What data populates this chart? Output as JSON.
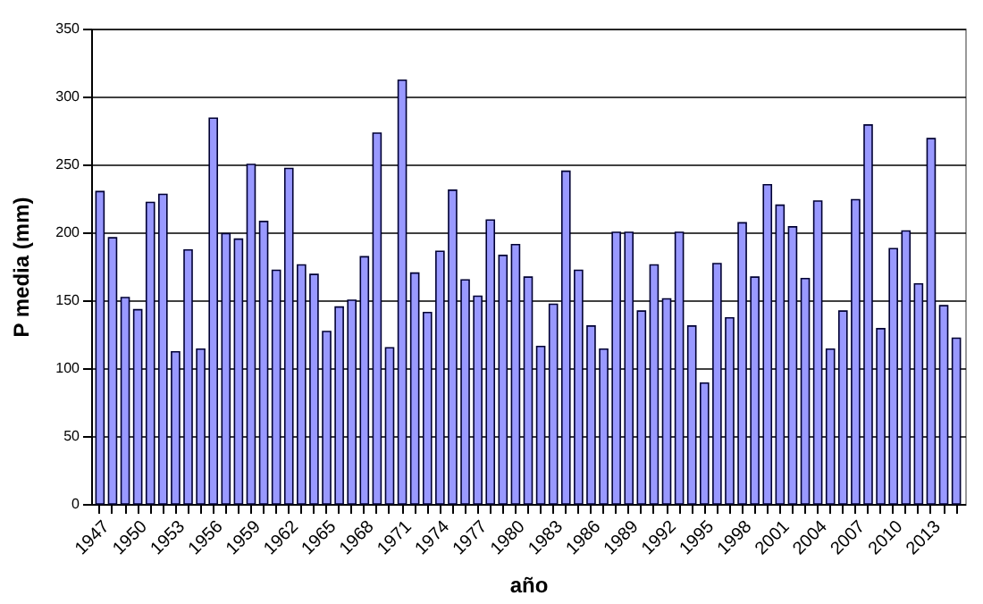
{
  "chart_data": {
    "type": "bar",
    "xlabel": "año",
    "ylabel": "P media (mm)",
    "categories": [
      "1947",
      null,
      null,
      "1950",
      null,
      null,
      "1953",
      null,
      null,
      "1956",
      null,
      null,
      "1959",
      null,
      null,
      "1962",
      null,
      null,
      "1965",
      null,
      null,
      "1968",
      null,
      null,
      "1971",
      null,
      null,
      "1974",
      null,
      null,
      "1977",
      null,
      null,
      "1980",
      null,
      null,
      "1983",
      null,
      null,
      "1986",
      null,
      null,
      "1989",
      null,
      null,
      "1992",
      null,
      null,
      "1995",
      null,
      null,
      "1998",
      null,
      null,
      "2001",
      null,
      null,
      "2004",
      null,
      null,
      "2007",
      null,
      null,
      "2010",
      null,
      null,
      "2013",
      null,
      null
    ],
    "values": [
      230,
      196,
      152,
      143,
      222,
      228,
      112,
      187,
      114,
      284,
      199,
      195,
      250,
      208,
      172,
      247,
      176,
      169,
      127,
      145,
      150,
      182,
      273,
      115,
      312,
      170,
      141,
      186,
      231,
      165,
      153,
      209,
      183,
      191,
      167,
      116,
      147,
      245,
      172,
      131,
      114,
      200,
      200,
      142,
      176,
      151,
      200,
      131,
      89,
      177,
      137,
      207,
      167,
      235,
      220,
      204,
      166,
      223,
      114,
      142,
      224,
      279,
      129,
      188,
      201,
      162,
      269,
      146,
      122
    ],
    "color": "#9999ff",
    "ylim": [
      0,
      350
    ],
    "yticks": [
      0,
      50,
      100,
      150,
      200,
      250,
      300,
      350
    ],
    "grid": "y"
  }
}
